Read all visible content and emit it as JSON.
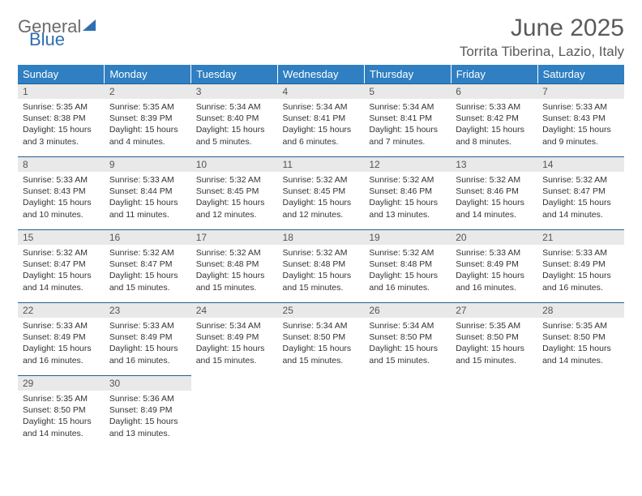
{
  "logo": {
    "general": "General",
    "blue": "Blue"
  },
  "title": "June 2025",
  "location": "Torrita Tiberina, Lazio, Italy",
  "colors": {
    "header_bg": "#2f7fc2",
    "header_text": "#ffffff",
    "daynum_bg": "#e9e9e9",
    "border": "#1f5f95",
    "title_color": "#5a5a5a",
    "logo_blue": "#2f6fb0",
    "logo_gray": "#6b6b6b"
  },
  "weekdays": [
    "Sunday",
    "Monday",
    "Tuesday",
    "Wednesday",
    "Thursday",
    "Friday",
    "Saturday"
  ],
  "weeks": [
    [
      {
        "n": "1",
        "sr": "5:35 AM",
        "ss": "8:38 PM",
        "dl": "15 hours and 3 minutes."
      },
      {
        "n": "2",
        "sr": "5:35 AM",
        "ss": "8:39 PM",
        "dl": "15 hours and 4 minutes."
      },
      {
        "n": "3",
        "sr": "5:34 AM",
        "ss": "8:40 PM",
        "dl": "15 hours and 5 minutes."
      },
      {
        "n": "4",
        "sr": "5:34 AM",
        "ss": "8:41 PM",
        "dl": "15 hours and 6 minutes."
      },
      {
        "n": "5",
        "sr": "5:34 AM",
        "ss": "8:41 PM",
        "dl": "15 hours and 7 minutes."
      },
      {
        "n": "6",
        "sr": "5:33 AM",
        "ss": "8:42 PM",
        "dl": "15 hours and 8 minutes."
      },
      {
        "n": "7",
        "sr": "5:33 AM",
        "ss": "8:43 PM",
        "dl": "15 hours and 9 minutes."
      }
    ],
    [
      {
        "n": "8",
        "sr": "5:33 AM",
        "ss": "8:43 PM",
        "dl": "15 hours and 10 minutes."
      },
      {
        "n": "9",
        "sr": "5:33 AM",
        "ss": "8:44 PM",
        "dl": "15 hours and 11 minutes."
      },
      {
        "n": "10",
        "sr": "5:32 AM",
        "ss": "8:45 PM",
        "dl": "15 hours and 12 minutes."
      },
      {
        "n": "11",
        "sr": "5:32 AM",
        "ss": "8:45 PM",
        "dl": "15 hours and 12 minutes."
      },
      {
        "n": "12",
        "sr": "5:32 AM",
        "ss": "8:46 PM",
        "dl": "15 hours and 13 minutes."
      },
      {
        "n": "13",
        "sr": "5:32 AM",
        "ss": "8:46 PM",
        "dl": "15 hours and 14 minutes."
      },
      {
        "n": "14",
        "sr": "5:32 AM",
        "ss": "8:47 PM",
        "dl": "15 hours and 14 minutes."
      }
    ],
    [
      {
        "n": "15",
        "sr": "5:32 AM",
        "ss": "8:47 PM",
        "dl": "15 hours and 14 minutes."
      },
      {
        "n": "16",
        "sr": "5:32 AM",
        "ss": "8:47 PM",
        "dl": "15 hours and 15 minutes."
      },
      {
        "n": "17",
        "sr": "5:32 AM",
        "ss": "8:48 PM",
        "dl": "15 hours and 15 minutes."
      },
      {
        "n": "18",
        "sr": "5:32 AM",
        "ss": "8:48 PM",
        "dl": "15 hours and 15 minutes."
      },
      {
        "n": "19",
        "sr": "5:32 AM",
        "ss": "8:48 PM",
        "dl": "15 hours and 16 minutes."
      },
      {
        "n": "20",
        "sr": "5:33 AM",
        "ss": "8:49 PM",
        "dl": "15 hours and 16 minutes."
      },
      {
        "n": "21",
        "sr": "5:33 AM",
        "ss": "8:49 PM",
        "dl": "15 hours and 16 minutes."
      }
    ],
    [
      {
        "n": "22",
        "sr": "5:33 AM",
        "ss": "8:49 PM",
        "dl": "15 hours and 16 minutes."
      },
      {
        "n": "23",
        "sr": "5:33 AM",
        "ss": "8:49 PM",
        "dl": "15 hours and 16 minutes."
      },
      {
        "n": "24",
        "sr": "5:34 AM",
        "ss": "8:49 PM",
        "dl": "15 hours and 15 minutes."
      },
      {
        "n": "25",
        "sr": "5:34 AM",
        "ss": "8:50 PM",
        "dl": "15 hours and 15 minutes."
      },
      {
        "n": "26",
        "sr": "5:34 AM",
        "ss": "8:50 PM",
        "dl": "15 hours and 15 minutes."
      },
      {
        "n": "27",
        "sr": "5:35 AM",
        "ss": "8:50 PM",
        "dl": "15 hours and 15 minutes."
      },
      {
        "n": "28",
        "sr": "5:35 AM",
        "ss": "8:50 PM",
        "dl": "15 hours and 14 minutes."
      }
    ],
    [
      {
        "n": "29",
        "sr": "5:35 AM",
        "ss": "8:50 PM",
        "dl": "15 hours and 14 minutes."
      },
      {
        "n": "30",
        "sr": "5:36 AM",
        "ss": "8:49 PM",
        "dl": "15 hours and 13 minutes."
      },
      null,
      null,
      null,
      null,
      null
    ]
  ],
  "labels": {
    "sunrise": "Sunrise:",
    "sunset": "Sunset:",
    "daylight": "Daylight:"
  }
}
